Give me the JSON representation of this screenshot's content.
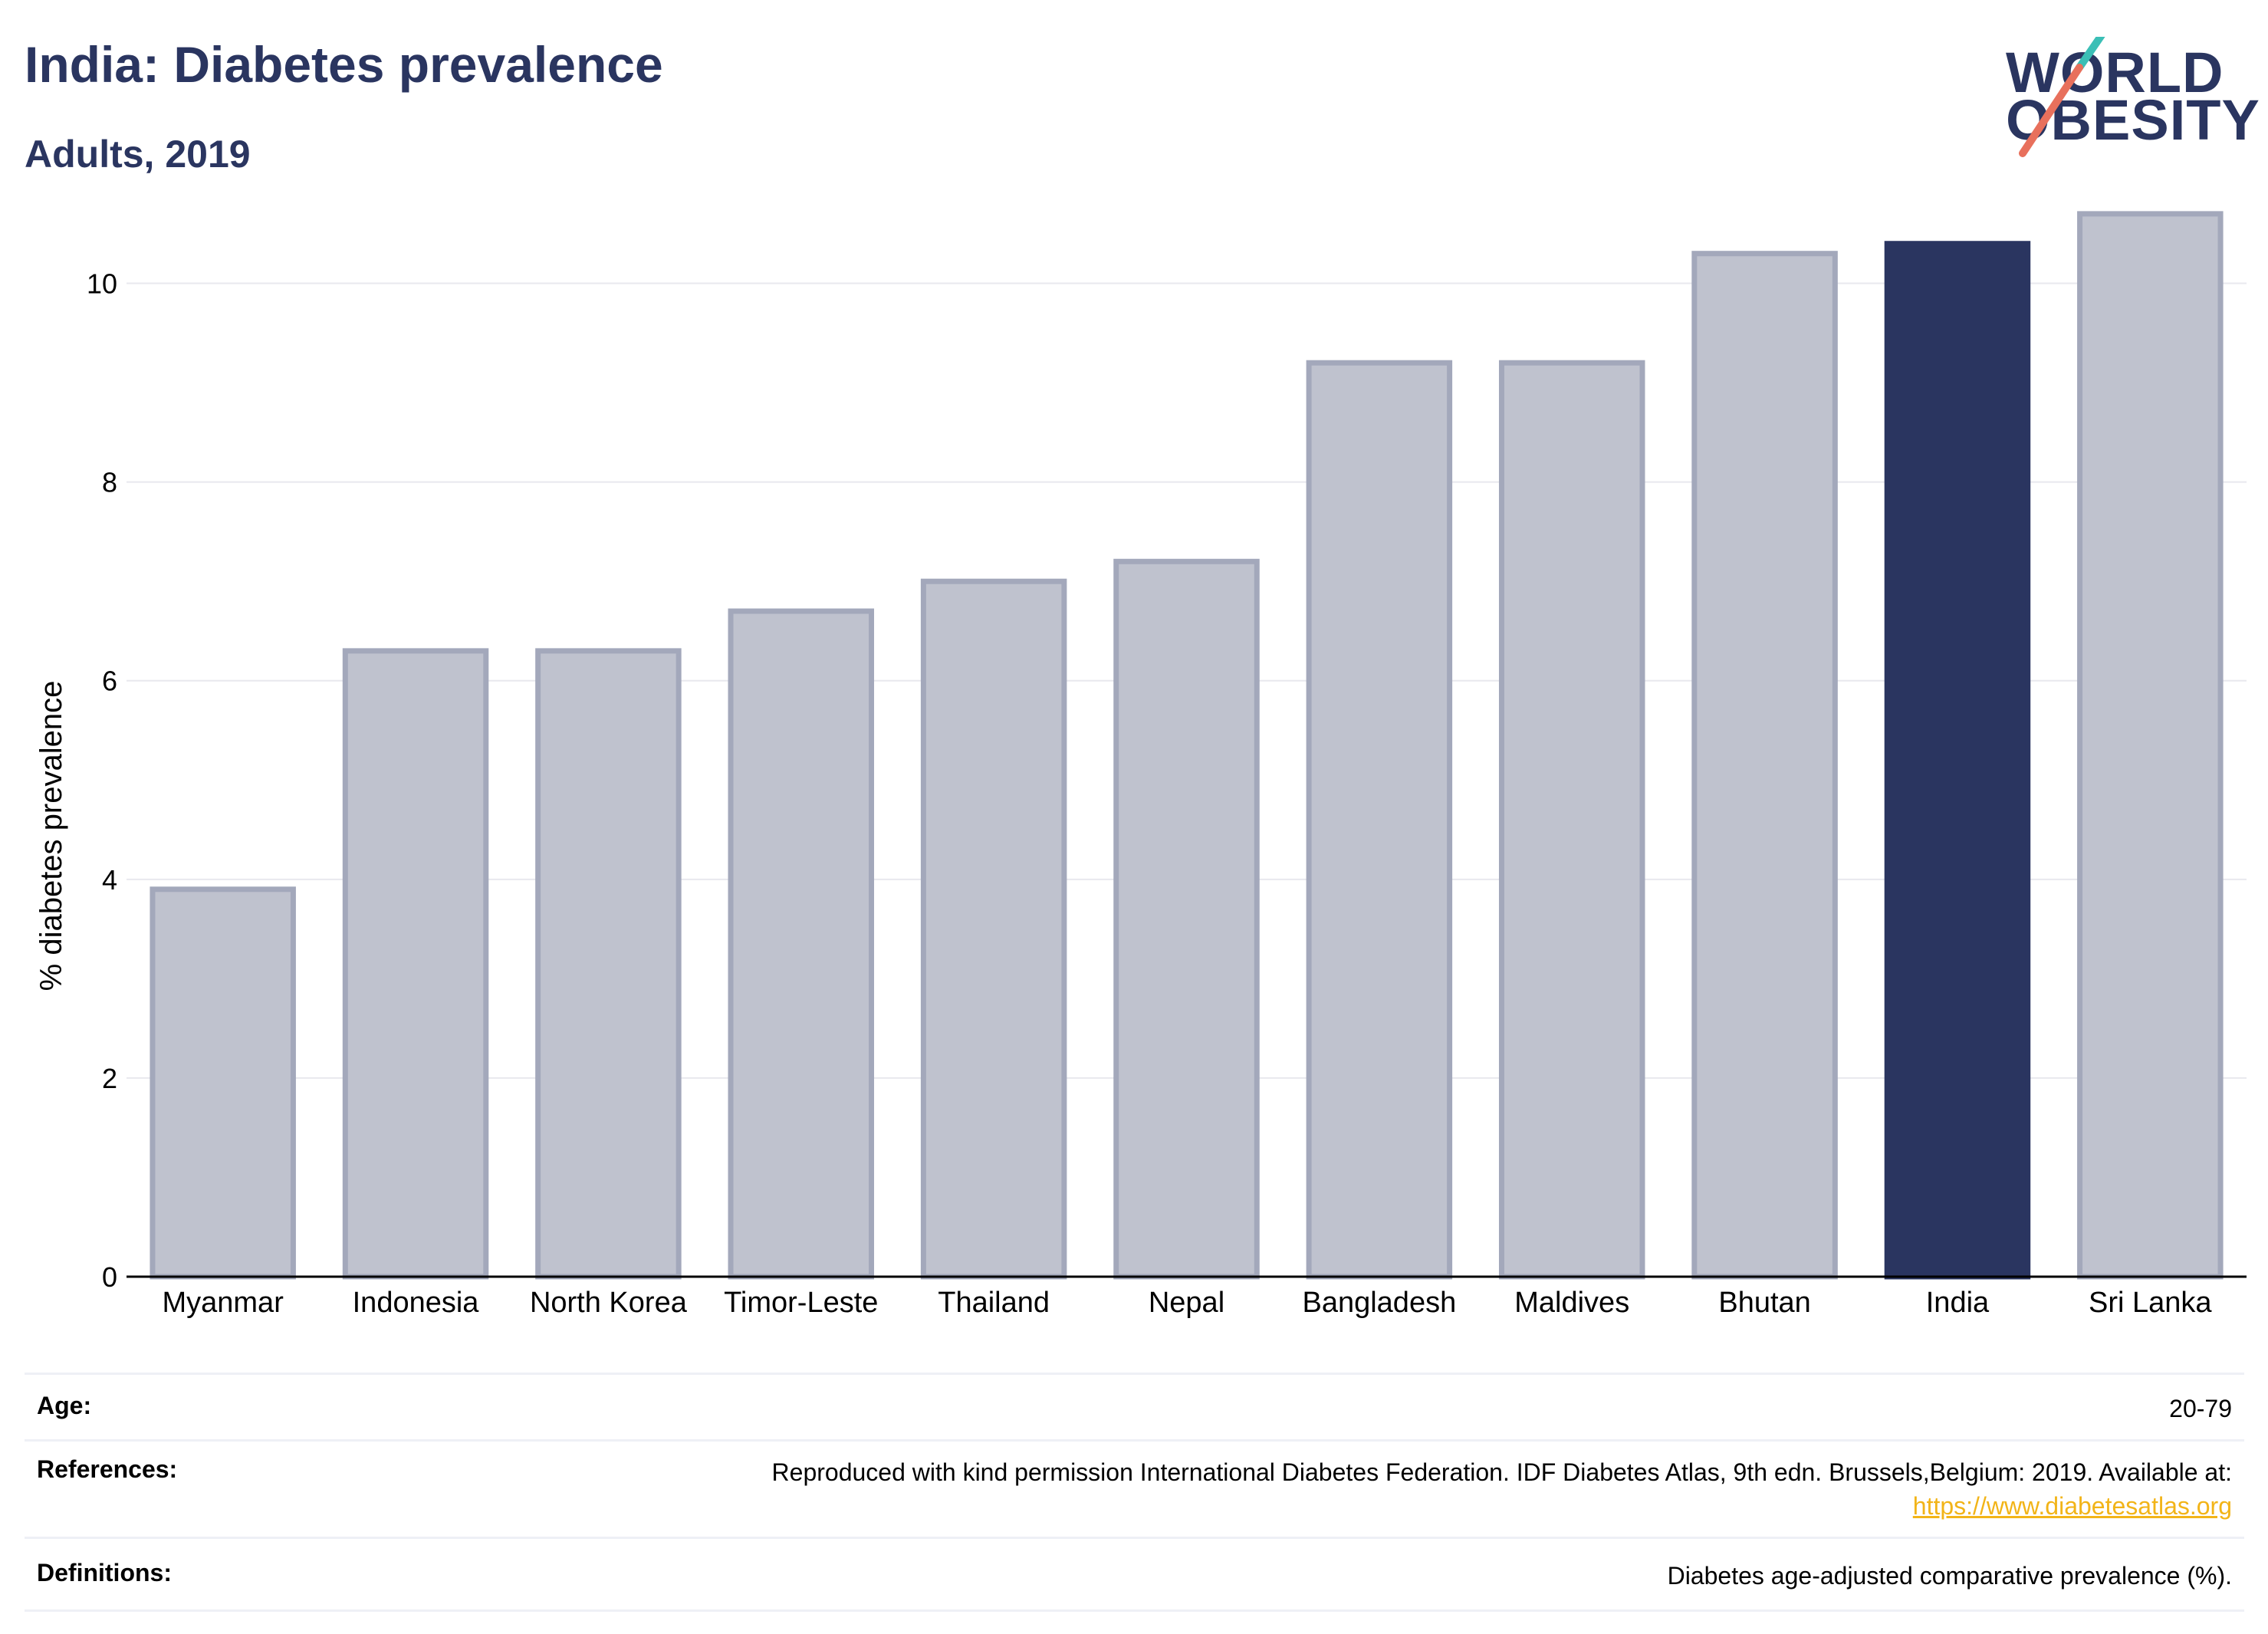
{
  "header": {
    "title": "India: Diabetes prevalence",
    "subtitle": "Adults, 2019"
  },
  "logo": {
    "line1": "WORLD",
    "line2": "OBESITY",
    "slash_colors": [
      "#3bbfb6",
      "#e8705c"
    ]
  },
  "chart_data": {
    "type": "bar",
    "title": "",
    "xlabel": "",
    "ylabel": "% diabetes prevalence",
    "ylim": [
      0,
      11
    ],
    "yticks": [
      0,
      2,
      4,
      6,
      8,
      10
    ],
    "grid": true,
    "categories": [
      "Myanmar",
      "Indonesia",
      "North Korea",
      "Timor-Leste",
      "Thailand",
      "Nepal",
      "Bangladesh",
      "Maldives",
      "Bhutan",
      "India",
      "Sri Lanka"
    ],
    "values": [
      3.9,
      6.3,
      6.3,
      6.7,
      7.0,
      7.2,
      9.2,
      9.2,
      10.3,
      10.4,
      10.7
    ],
    "highlight": "India",
    "colors": {
      "bar": "#bfc2ce",
      "bar_edge": "#a3a8bb",
      "highlight": "#2a3560",
      "grid": "#e8e8ee",
      "axis": "#000000"
    }
  },
  "info": {
    "age": {
      "label": "Age:",
      "value": "20-79"
    },
    "references": {
      "label": "References:",
      "value": "Reproduced with kind permission International Diabetes Federation. IDF Diabetes Atlas, 9th edn. Brussels,Belgium: 2019. Available at:",
      "link": "https://www.diabetesatlas.org"
    },
    "definitions": {
      "label": "Definitions:",
      "value": "Diabetes age-adjusted comparative prevalence (%)."
    }
  }
}
